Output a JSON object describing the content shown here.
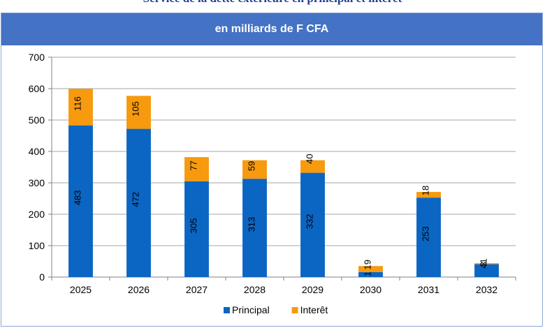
{
  "page": {
    "top_title": "Service de la dette extérieure en principal et intérêt",
    "subtitle": "en milliards de F CFA"
  },
  "chart_data": {
    "type": "bar",
    "stacked": true,
    "title": "",
    "xlabel": "",
    "ylabel": "",
    "categories": [
      "2025",
      "2026",
      "2027",
      "2028",
      "2029",
      "2030",
      "2031",
      "2032"
    ],
    "series": [
      {
        "name": "Principal",
        "color": "#0b66c3",
        "values": [
          483,
          472,
          305,
          313,
          332,
          16,
          253,
          41
        ],
        "labels": [
          "483",
          "472",
          "305",
          "313",
          "332",
          "16",
          "253",
          "41"
        ]
      },
      {
        "name": "Interêt",
        "color": "#f79a0e",
        "values": [
          116,
          105,
          77,
          59,
          40,
          19,
          18,
          3
        ],
        "labels": [
          "116",
          "105",
          "77",
          "59",
          "40",
          "19",
          "18",
          "3"
        ]
      }
    ],
    "ylim": [
      0,
      700
    ],
    "yticks": [
      "0",
      "100",
      "200",
      "300",
      "400",
      "500",
      "600",
      "700"
    ],
    "grid": true,
    "legend": "bottom"
  }
}
